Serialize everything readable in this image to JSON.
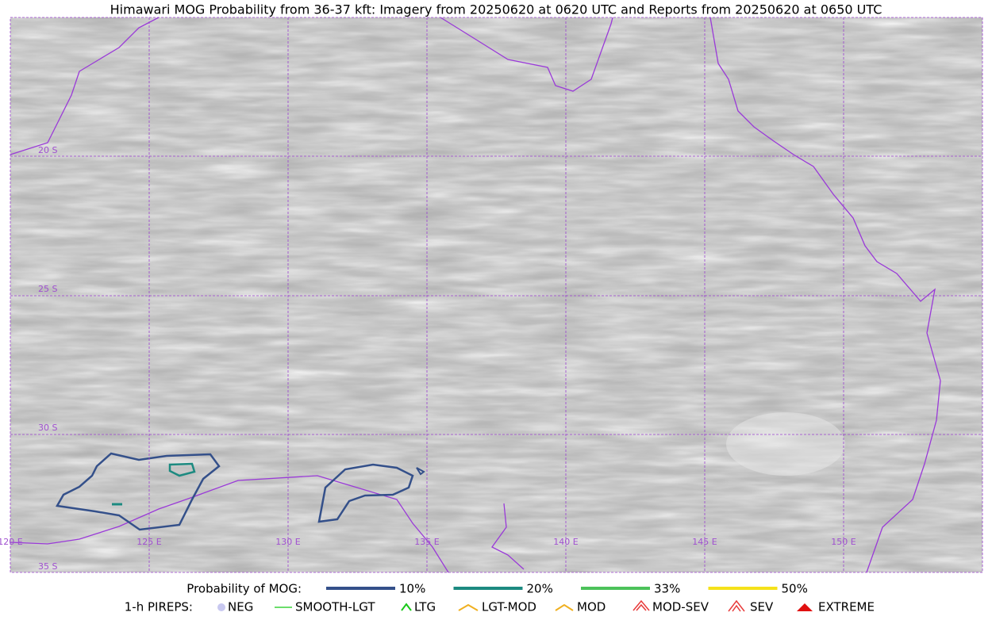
{
  "title": "Himawari MOG Probability from 36-37 kft: Imagery from 20250620 at 0620 UTC and Reports from 20250620 at 0650 UTC",
  "map": {
    "lat_labels": [
      "20 S",
      "25 S",
      "30 S",
      "35 S"
    ],
    "lon_labels": [
      "120 E",
      "125 E",
      "130 E",
      "135 E",
      "140 E",
      "145 E",
      "150 E"
    ]
  },
  "legend": {
    "mog": {
      "label": "Probability of MOG:",
      "items": [
        {
          "label": "10%",
          "color": "#34508a"
        },
        {
          "label": "20%",
          "color": "#1c8a80"
        },
        {
          "label": "33%",
          "color": "#4cc25a"
        },
        {
          "label": "50%",
          "color": "#f5e11a"
        }
      ]
    },
    "pireps": {
      "label": "1-h PIREPS:",
      "items": [
        {
          "label": "NEG",
          "color": "#c8c8f0"
        },
        {
          "label": "SMOOTH-LGT",
          "color": "#3ad23a"
        },
        {
          "label": "LTG",
          "color": "#18c818"
        },
        {
          "label": "LGT-MOD",
          "color": "#f0b020"
        },
        {
          "label": "MOD",
          "color": "#f0b020"
        },
        {
          "label": "MOD-SEV",
          "color": "#e83a3a"
        },
        {
          "label": "SEV",
          "color": "#e83a3a"
        },
        {
          "label": "EXTREME",
          "color": "#e01010"
        }
      ]
    }
  }
}
